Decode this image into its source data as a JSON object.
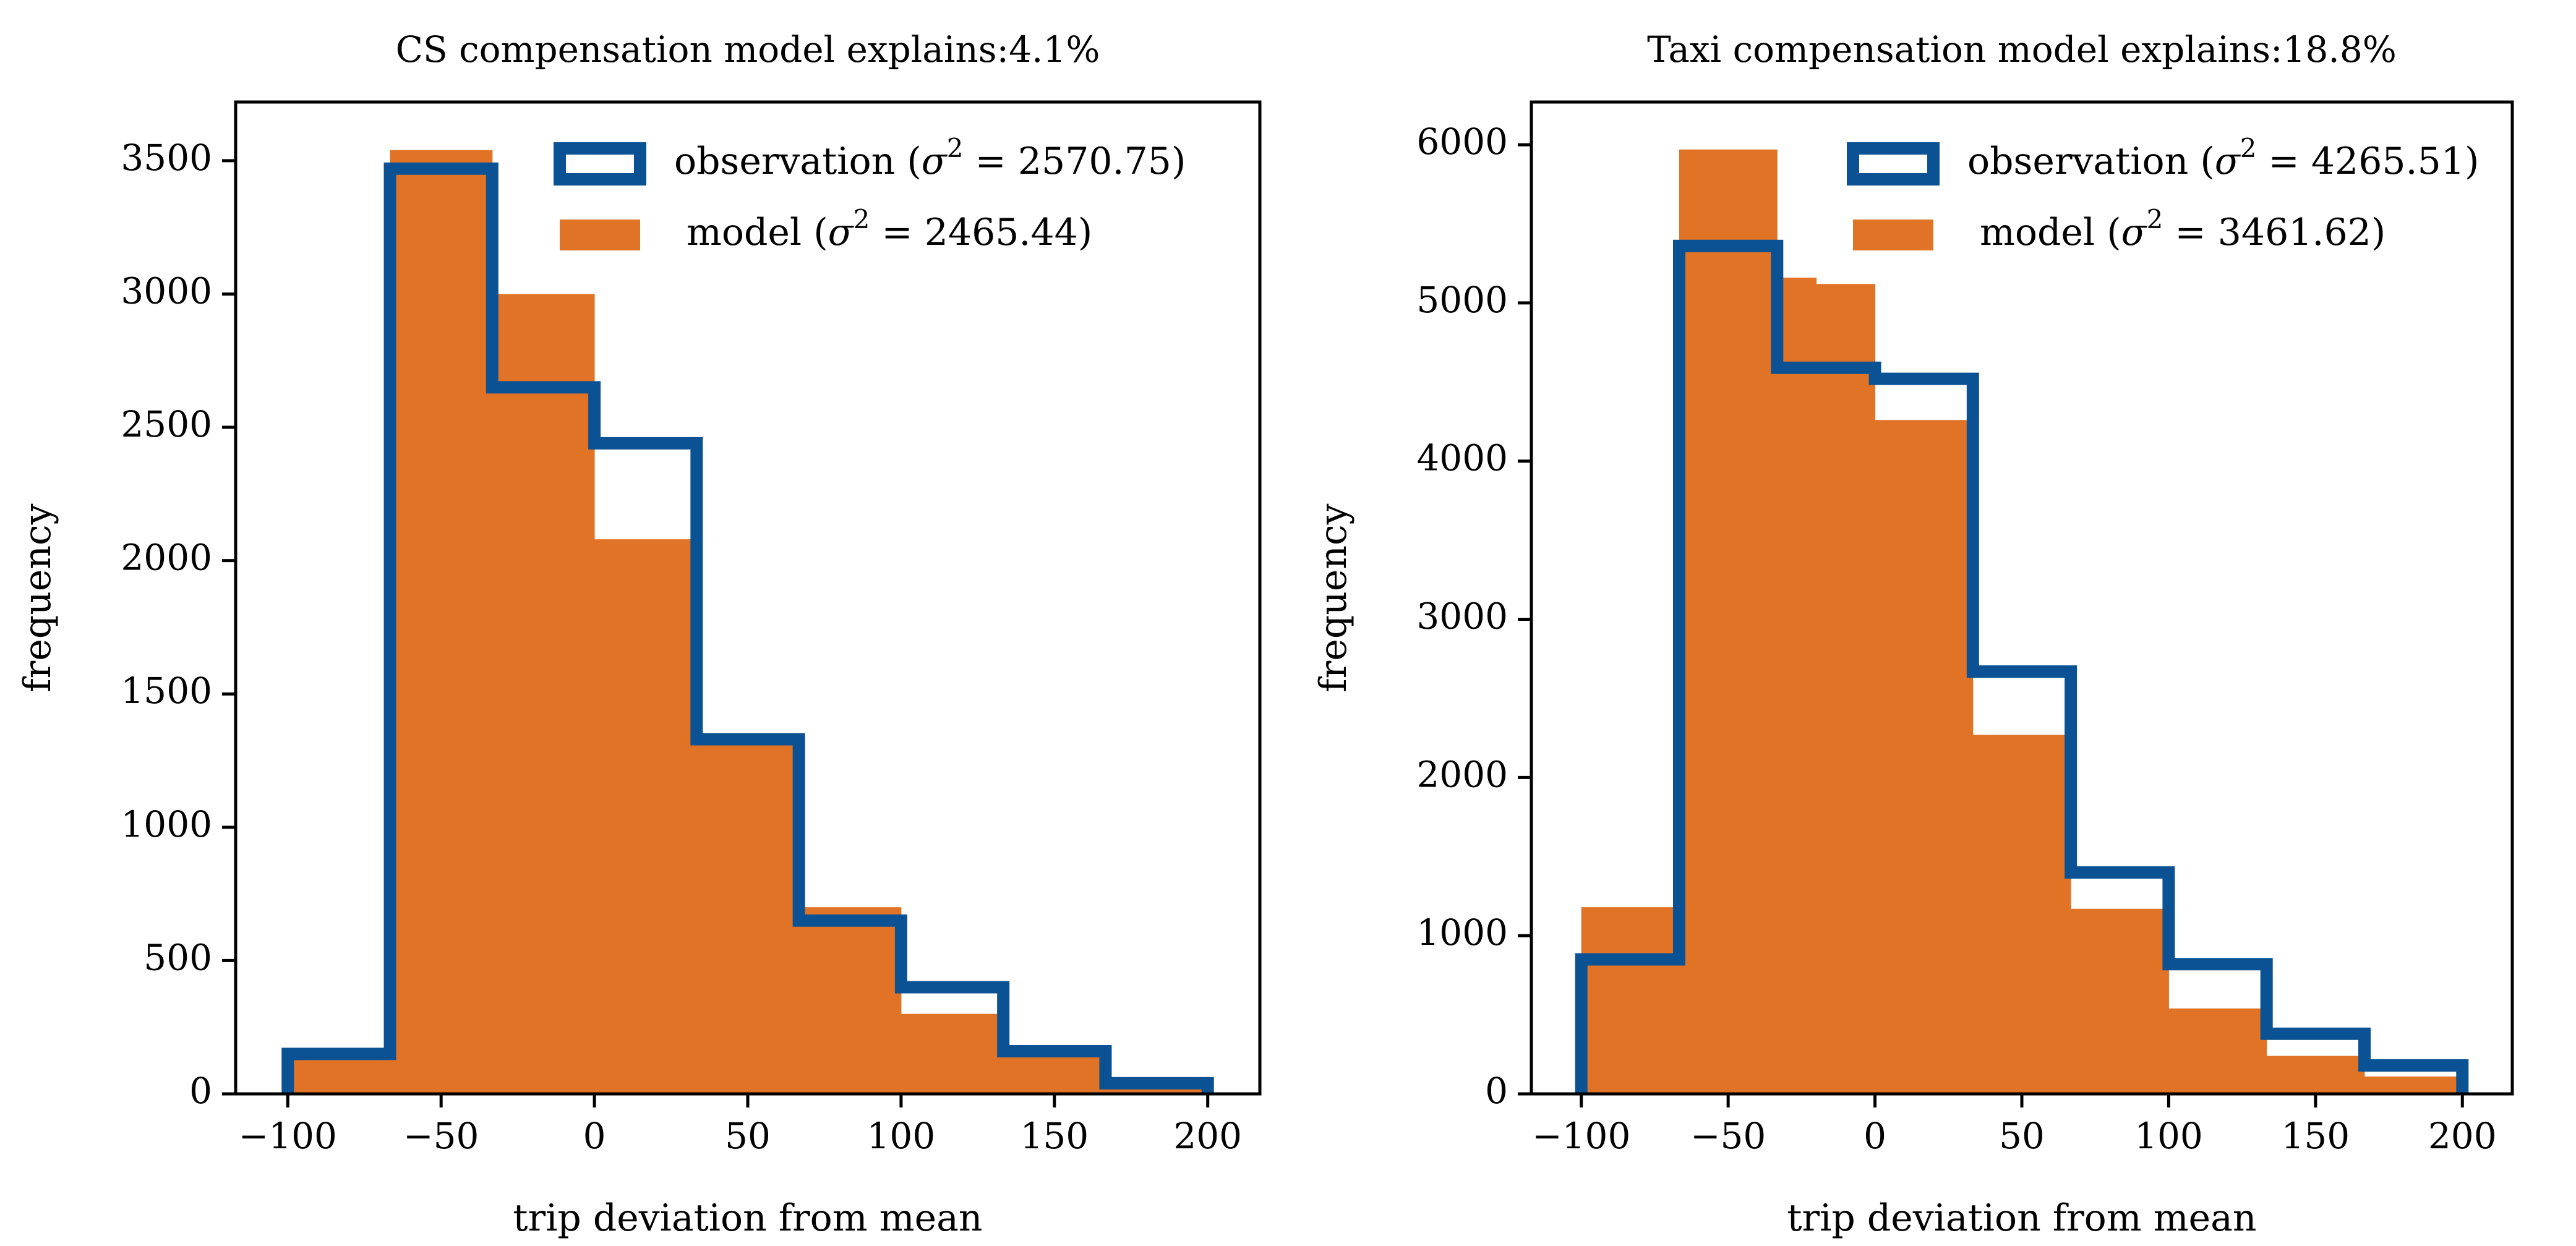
{
  "chart_data": [
    {
      "type": "histogram",
      "title": "CS compensation model explains:4.1%",
      "xlabel": "trip deviation from mean",
      "ylabel": "frequency",
      "xlim": [
        -117,
        217
      ],
      "ylim": [
        0,
        3720
      ],
      "xticks": [
        -100,
        -50,
        0,
        50,
        100,
        150,
        200
      ],
      "xtick_labels": [
        "−100",
        "−50",
        "0",
        "50",
        "100",
        "150",
        "200"
      ],
      "yticks": [
        0,
        500,
        1000,
        1500,
        2000,
        2500,
        3000,
        3500
      ],
      "ytick_labels": [
        "0",
        "500",
        "1000",
        "1500",
        "2000",
        "2500",
        "3000",
        "3500"
      ],
      "bin_edges": [
        -100,
        -66.67,
        -33.33,
        0,
        33.33,
        66.67,
        100,
        133.33,
        166.67,
        200
      ],
      "legend_position": "upper-right",
      "series": [
        {
          "name": "observation",
          "legend_label": "observation (σ² = 2570.75)",
          "style": "step",
          "values": [
            150,
            3470,
            2650,
            2440,
            1330,
            650,
            400,
            160,
            40
          ]
        },
        {
          "name": "model",
          "legend_label": "model (σ² = 2465.44)",
          "style": "filled",
          "values": [
            130,
            3540,
            3000,
            2080,
            1330,
            700,
            300,
            150,
            25
          ]
        }
      ]
    },
    {
      "type": "histogram",
      "title": "Taxi compensation model explains:18.8%",
      "xlabel": "trip deviation from mean",
      "ylabel": "frequency",
      "xlim": [
        -117,
        217
      ],
      "ylim": [
        0,
        6270
      ],
      "xticks": [
        -100,
        -50,
        0,
        50,
        100,
        150,
        200
      ],
      "xtick_labels": [
        "−100",
        "−50",
        "0",
        "50",
        "100",
        "150",
        "200"
      ],
      "yticks": [
        0,
        1000,
        2000,
        3000,
        4000,
        5000,
        6000
      ],
      "ytick_labels": [
        "0",
        "1000",
        "2000",
        "3000",
        "4000",
        "5000",
        "6000"
      ],
      "bin_edges": [
        -100,
        -66.67,
        -50,
        -33.33,
        -20,
        0,
        33.33,
        66.67,
        100,
        133.33,
        166.67,
        200
      ],
      "legend_position": "upper-right",
      "series": [
        {
          "name": "observation",
          "legend_label": "observation (σ² = 4265.51)",
          "style": "step",
          "edges": [
            -100,
            -66.67,
            -33.33,
            0,
            33.33,
            66.67,
            100,
            133.33,
            166.67,
            200
          ],
          "values": [
            850,
            5360,
            4590,
            4520,
            2670,
            1400,
            820,
            380,
            180
          ]
        },
        {
          "name": "model",
          "legend_label": "model (σ² = 3461.62)",
          "style": "filled",
          "edges": [
            -100,
            -66.67,
            -33.33,
            -20,
            0,
            33.33,
            66.67,
            100,
            133.33,
            166.67,
            200
          ],
          "values": [
            1180,
            5970,
            5160,
            5120,
            4260,
            2270,
            1170,
            540,
            240,
            110
          ]
        }
      ]
    }
  ],
  "colors": {
    "observation": "#0a5294",
    "model": "#e07326",
    "axes": "#000000"
  }
}
